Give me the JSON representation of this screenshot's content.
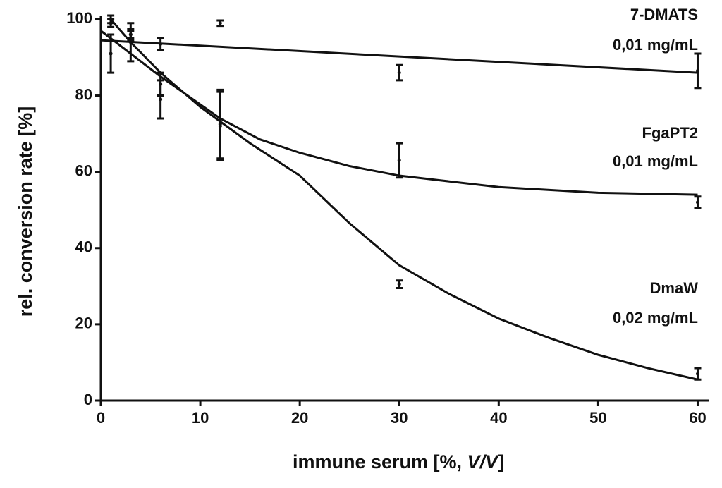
{
  "chart_data": {
    "type": "scatter",
    "x_label": [
      "immune serum [%, ",
      "V/V",
      "]"
    ],
    "y_label": "rel. conversion rate [%]",
    "xlim": [
      0,
      61.1
    ],
    "ylim": [
      0,
      101
    ],
    "xticks": [
      0,
      10,
      20,
      30,
      40,
      50,
      60
    ],
    "yticks": [
      0,
      20,
      40,
      60,
      80,
      100
    ],
    "series": [
      {
        "name": "7-DMATS",
        "note": "0,01 mg/mL",
        "color": "#111111",
        "x": [
          1,
          3,
          6,
          12,
          30,
          60
        ],
        "values": [
          99,
          96,
          93.5,
          99,
          86,
          86.5
        ],
        "errors": [
          1,
          1,
          1.5,
          0.7,
          2,
          4.5
        ],
        "fit_x": [
          0,
          60
        ],
        "fit_values": [
          94.5,
          86
        ]
      },
      {
        "name": "FgaPT2",
        "note": "0,01 mg/mL",
        "color": "#111111",
        "x": [
          1,
          3,
          6,
          12,
          30,
          60
        ],
        "values": [
          91,
          94,
          79,
          72.5,
          63,
          52
        ],
        "errors": [
          5,
          5,
          5,
          9,
          4.5,
          1.5
        ],
        "fit_x": [
          0,
          3,
          6,
          9,
          12,
          16,
          20,
          25,
          30,
          40,
          50,
          60
        ],
        "fit_values": [
          97,
          91,
          85,
          79.5,
          74,
          68.5,
          65,
          61.5,
          59,
          56,
          54.5,
          54
        ]
      },
      {
        "name": "DmaW",
        "note": "0,02 mg/mL",
        "color": "#111111",
        "x": [
          1,
          3,
          6,
          12,
          30,
          60
        ],
        "values": [
          100,
          96,
          83,
          72,
          30.5,
          7
        ],
        "errors": [
          1,
          1.5,
          3,
          9,
          1,
          1.5
        ],
        "fit_x": [
          1,
          3,
          6,
          10,
          15,
          20,
          25,
          30,
          35,
          40,
          45,
          50,
          55,
          60
        ],
        "fit_values": [
          100,
          94,
          86,
          77,
          67.5,
          59,
          46.5,
          35.5,
          28,
          21.5,
          16.5,
          12,
          8.5,
          5.5
        ]
      }
    ]
  }
}
